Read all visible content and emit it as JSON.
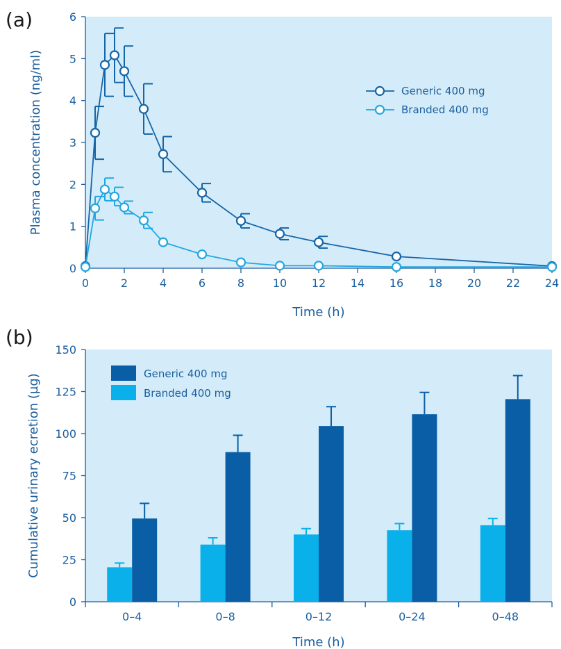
{
  "chart_data": [
    {
      "panel_label": "(a)",
      "type": "line",
      "xlabel": "Time (h)",
      "ylabel": "Plasma concentration (ng/ml)",
      "xlim": [
        0,
        24
      ],
      "ylim": [
        0,
        6
      ],
      "xticks": [
        "0",
        "2",
        "4",
        "6",
        "8",
        "10",
        "12",
        "14",
        "16",
        "18",
        "20",
        "22",
        "24"
      ],
      "yticks": [
        "0",
        "1",
        "2",
        "3",
        "4",
        "5",
        "6"
      ],
      "background": "#d4ecf9",
      "legend_position": "top-right",
      "x": [
        0,
        0.5,
        1,
        1.5,
        2,
        3,
        4,
        6,
        8,
        10,
        12,
        16,
        24
      ],
      "series": [
        {
          "name": "Generic 400 mg",
          "color": "#1565a8",
          "values": [
            0.05,
            3.23,
            4.85,
            5.08,
            4.7,
            3.8,
            2.72,
            1.8,
            1.13,
            0.82,
            0.62,
            0.28,
            0.05
          ],
          "errors": [
            0,
            0.63,
            0.75,
            0.65,
            0.6,
            0.6,
            0.42,
            0.22,
            0.17,
            0.14,
            0.14,
            0,
            0
          ]
        },
        {
          "name": "Branded 400 mg",
          "color": "#22a7e1",
          "values": [
            0.03,
            1.43,
            1.88,
            1.71,
            1.45,
            1.14,
            0.62,
            0.33,
            0.14,
            0.06,
            0.06,
            0.03,
            0.03
          ],
          "errors": [
            0,
            0.28,
            0.27,
            0.22,
            0.15,
            0.19,
            0,
            0,
            0,
            0,
            0,
            0,
            0
          ]
        }
      ]
    },
    {
      "panel_label": "(b)",
      "type": "bar",
      "xlabel": "Time (h)",
      "ylabel": "Cumulative urinary ecretion (µg)",
      "ylim": [
        0,
        150
      ],
      "yticks": [
        "0",
        "25",
        "50",
        "75",
        "100",
        "125",
        "150"
      ],
      "categories": [
        "0–4",
        "0–8",
        "0–12",
        "0–24",
        "0–48"
      ],
      "background": "#d4ecf9",
      "legend_position": "top-left",
      "series": [
        {
          "name": "Branded 400 mg",
          "color": "#0ab0ea",
          "values": [
            20.5,
            34,
            40,
            42.5,
            45.5
          ],
          "errors": [
            2.5,
            4,
            3.5,
            4,
            4
          ]
        },
        {
          "name": "Generic 400 mg",
          "color": "#0a5ea6",
          "values": [
            49.5,
            89,
            104.5,
            111.5,
            120.5
          ],
          "errors": [
            9,
            10,
            11.5,
            13,
            14
          ]
        }
      ],
      "legend_order": [
        "Generic 400 mg",
        "Branded 400 mg"
      ]
    }
  ]
}
